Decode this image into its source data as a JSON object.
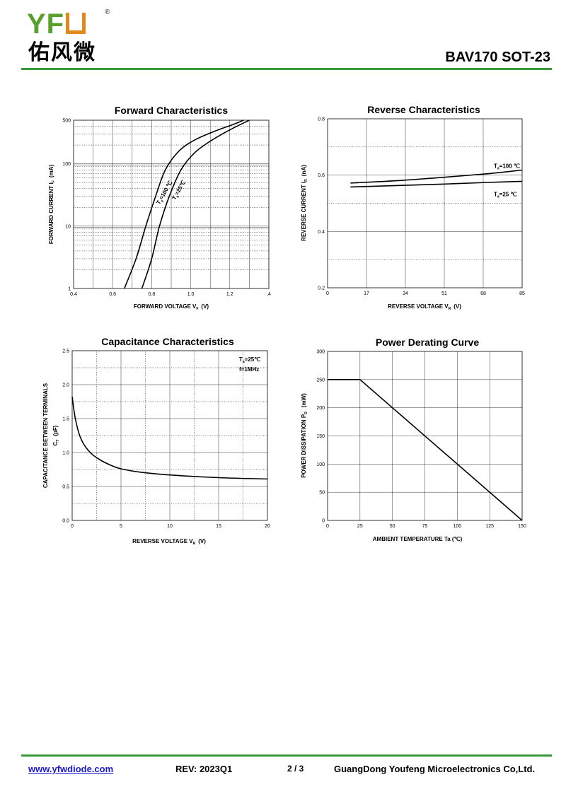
{
  "header": {
    "brand": "YF",
    "brand_cn": "佑风微",
    "reg_mark": "®",
    "part_number": "BAV170  SOT-23"
  },
  "footer": {
    "url": "www.yfwdiode.com",
    "rev": "REV: 2023Q1",
    "page": "2 / 3",
    "company": "GuangDong Youfeng Microelectronics Co,Ltd."
  },
  "chart_data": [
    {
      "id": "forward",
      "type": "line",
      "title": "Forward    Characteristics",
      "xlabel": "FORWARD VOLTAGE   V",
      "xlabel_sub": "F",
      "xlabel_unit": "(V)",
      "ylabel": "FORWARD CURRENT   I",
      "ylabel_sub": "F",
      "ylabel_unit": "(mA)",
      "xlim": [
        0.4,
        1.4
      ],
      "ylim": [
        1,
        500
      ],
      "yscale": "log",
      "x_ticks": [
        "0.4",
        "0.6",
        "0.8",
        "1.0",
        "1.2",
        ".4"
      ],
      "y_ticks": [
        {
          "v": 1,
          "label": "1"
        },
        {
          "v": 10,
          "label": "10"
        },
        {
          "v": 100,
          "label": "100"
        },
        {
          "v": 500,
          "label": "500"
        }
      ],
      "series": [
        {
          "name": "T=100℃",
          "label_main": "T",
          "label_sub": "a",
          "label_rest": "=100 ℃",
          "points": [
            [
              0.66,
              1
            ],
            [
              0.72,
              3
            ],
            [
              0.77,
              10
            ],
            [
              0.82,
              30
            ],
            [
              0.87,
              80
            ],
            [
              0.94,
              160
            ],
            [
              1.02,
              240
            ],
            [
              1.12,
              330
            ],
            [
              1.22,
              430
            ],
            [
              1.27,
              500
            ]
          ]
        },
        {
          "name": "T=25℃",
          "label_main": "T",
          "label_sub": "a",
          "label_rest": "=25℃",
          "points": [
            [
              0.75,
              1
            ],
            [
              0.8,
              3
            ],
            [
              0.84,
              10
            ],
            [
              0.89,
              30
            ],
            [
              0.95,
              80
            ],
            [
              1.02,
              150
            ],
            [
              1.1,
              230
            ],
            [
              1.2,
              350
            ],
            [
              1.3,
              500
            ]
          ]
        }
      ]
    },
    {
      "id": "reverse",
      "type": "line",
      "title": "Reverse    Characteristics",
      "xlabel": "REVERSE VOLTAGE   V",
      "xlabel_sub": "R",
      "xlabel_unit": "(V)",
      "ylabel": "REVERSE CURRENT   I",
      "ylabel_sub": "R",
      "ylabel_unit": "(nA)",
      "xlim": [
        0,
        85
      ],
      "ylim": [
        0.2,
        0.8
      ],
      "x_ticks": [
        "0",
        "17",
        "34",
        "51",
        "68",
        "85"
      ],
      "y_ticks": [
        {
          "v": 0.2,
          "label": "0.2"
        },
        {
          "v": 0.4,
          "label": "0.4"
        },
        {
          "v": 0.6,
          "label": "0.6"
        },
        {
          "v": 0.8,
          "label": "0.8"
        }
      ],
      "series": [
        {
          "name": "T=100℃",
          "label_main": "T",
          "label_sub": "a",
          "label_rest": "=100 ℃",
          "points": [
            [
              10,
              0.572
            ],
            [
              30,
              0.58
            ],
            [
              50,
              0.592
            ],
            [
              70,
              0.605
            ],
            [
              85,
              0.618
            ]
          ]
        },
        {
          "name": "T=25℃",
          "label_main": "T",
          "label_sub": "a",
          "label_rest": "=25 ℃",
          "points": [
            [
              10,
              0.558
            ],
            [
              30,
              0.563
            ],
            [
              50,
              0.568
            ],
            [
              70,
              0.574
            ],
            [
              85,
              0.578
            ]
          ]
        }
      ]
    },
    {
      "id": "capacitance",
      "type": "line",
      "title": "Capacitance Characteristics",
      "xlabel": "REVERSE VOLTAGE   V",
      "xlabel_sub": "R",
      "xlabel_unit": "(V)",
      "ylabel_line1": "CAPACITANCE BETWEEN TERMINALS",
      "ylabel": "C",
      "ylabel_sub": "T",
      "ylabel_unit": "(pF)",
      "xlim": [
        0,
        20
      ],
      "ylim": [
        0,
        2.5
      ],
      "x_ticks": [
        "0",
        "5",
        "10",
        "15",
        "20"
      ],
      "y_ticks": [
        {
          "v": 0,
          "label": "0.0"
        },
        {
          "v": 0.5,
          "label": "0.5"
        },
        {
          "v": 1.0,
          "label": "1.0"
        },
        {
          "v": 1.5,
          "label": "1.5"
        },
        {
          "v": 2.0,
          "label": "2.0"
        },
        {
          "v": 2.5,
          "label": "2.5"
        }
      ],
      "annotation": {
        "line1_main": "T",
        "line1_sub": "a",
        "line1_rest": "=25℃",
        "line2": "f=1MHz"
      },
      "series": [
        {
          "name": "C_T",
          "points": [
            [
              0,
              1.82
            ],
            [
              0.3,
              1.52
            ],
            [
              0.7,
              1.28
            ],
            [
              1.2,
              1.12
            ],
            [
              2,
              0.98
            ],
            [
              3,
              0.88
            ],
            [
              4,
              0.81
            ],
            [
              5,
              0.76
            ],
            [
              7,
              0.71
            ],
            [
              10,
              0.67
            ],
            [
              15,
              0.63
            ],
            [
              20,
              0.61
            ]
          ]
        }
      ]
    },
    {
      "id": "derating",
      "type": "line",
      "title": "Power Derating Curve",
      "xlabel": "AMBIENT TEMPERATURE     Ta     (℃)",
      "ylabel": "POWER DISSIPATION     P",
      "ylabel_sub": "D",
      "ylabel_unit": "(mW)",
      "xlim": [
        0,
        150
      ],
      "ylim": [
        0,
        300
      ],
      "x_ticks": [
        "0",
        "25",
        "50",
        "75",
        "100",
        "125",
        "150"
      ],
      "y_ticks": [
        {
          "v": 0,
          "label": "0"
        },
        {
          "v": 50,
          "label": "50"
        },
        {
          "v": 100,
          "label": "100"
        },
        {
          "v": 150,
          "label": "150"
        },
        {
          "v": 200,
          "label": "200"
        },
        {
          "v": 250,
          "label": "250"
        },
        {
          "v": 300,
          "label": "300"
        }
      ],
      "series": [
        {
          "name": "P_D",
          "points": [
            [
              0,
              250
            ],
            [
              25,
              250
            ],
            [
              150,
              0
            ]
          ]
        }
      ]
    }
  ]
}
